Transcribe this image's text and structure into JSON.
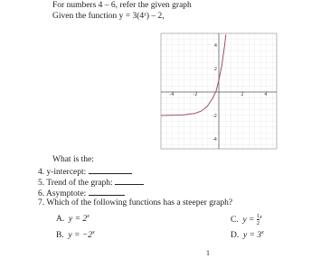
{
  "header": {
    "line1": "For numbers 4 – 6, refer the given graph",
    "line2": "Given the function y = 3(4ˣ) – 2,"
  },
  "graph": {
    "x_tick_labels": [
      "-4",
      "-2",
      "2",
      "4"
    ],
    "y_tick_labels": [
      "4",
      "2",
      "-2",
      "-4"
    ]
  },
  "prompt": "What is the:",
  "questions": [
    "4.  y-intercept:",
    "5.  Trend of the graph:",
    "6.  Asymptote:",
    "7.  Which of the following functions has a steeper graph?"
  ],
  "choices": [
    {
      "letter": "A.",
      "base": "y = 2",
      "exp": "x"
    },
    {
      "letter": "B.",
      "base": "y = −2",
      "exp": "x"
    },
    {
      "letter": "C.",
      "base": "y = ",
      "num": "1",
      "den": "2",
      "exp": "x"
    },
    {
      "letter": "D.",
      "base": "y = 3",
      "exp": "x"
    }
  ],
  "page_number": "1"
}
